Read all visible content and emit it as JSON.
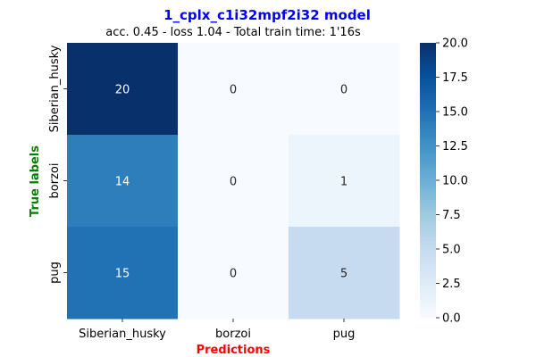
{
  "chart_data": {
    "type": "heatmap",
    "title": "1_cplx_c1i32mpf2i32 model",
    "subtitle": "acc. 0.45 - loss 1.04 - Total train time: 1'16s",
    "xlabel": "Predictions",
    "ylabel": "True labels",
    "x_categories": [
      "Siberian_husky",
      "borzoi",
      "pug"
    ],
    "y_categories": [
      "Siberian_husky",
      "borzoi",
      "pug"
    ],
    "values": [
      [
        20,
        0,
        0
      ],
      [
        14,
        0,
        1
      ],
      [
        15,
        0,
        5
      ]
    ],
    "colorbar": {
      "range": [
        0,
        20
      ],
      "ticks": [
        "0.0",
        "2.5",
        "5.0",
        "7.5",
        "10.0",
        "12.5",
        "15.0",
        "17.5",
        "20.0"
      ],
      "colormap": "Blues"
    },
    "colors": {
      "title": "#0000ff",
      "xlabel": "#ff0000",
      "ylabel": "#008000"
    }
  }
}
